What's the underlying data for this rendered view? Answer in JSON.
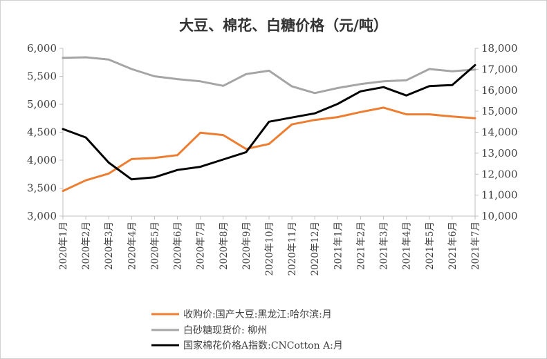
{
  "chart_data": {
    "type": "line",
    "title": "大豆、棉花、白糖价格（元/吨）",
    "categories": [
      "2020年1月",
      "2020年2月",
      "2020年3月",
      "2020年4月",
      "2020年5月",
      "2020年6月",
      "2020年7月",
      "2020年8月",
      "2020年9月",
      "2020年10月",
      "2020年11月",
      "2020年12月",
      "2021年1月",
      "2021年2月",
      "2021年3月",
      "2021年4月",
      "2021年5月",
      "2021年6月",
      "2021年7月"
    ],
    "y_left": {
      "min": 3000,
      "max": 6000,
      "ticks": [
        "3,000",
        "3,500",
        "4,000",
        "4,500",
        "5,000",
        "5,500",
        "6,000"
      ]
    },
    "y_right": {
      "min": 10000,
      "max": 18000,
      "ticks": [
        "10,000",
        "11,000",
        "12,000",
        "13,000",
        "14,000",
        "15,000",
        "16,000",
        "17,000",
        "18,000"
      ]
    },
    "series": [
      {
        "name": "收购价:国产大豆:黑龙江:哈尔滨:月",
        "axis": "left",
        "color": "#ED7D31",
        "values": [
          3450,
          3640,
          3760,
          4020,
          4040,
          4090,
          4490,
          4450,
          4200,
          4290,
          4640,
          4720,
          4770,
          4860,
          4940,
          4820,
          4820,
          4780,
          4750
        ]
      },
      {
        "name": "白砂糖现货价: 柳州",
        "axis": "left",
        "color": "#A5A5A5",
        "values": [
          5830,
          5840,
          5800,
          5630,
          5500,
          5450,
          5410,
          5330,
          5540,
          5600,
          5320,
          5200,
          5290,
          5360,
          5410,
          5430,
          5630,
          5590,
          5620
        ]
      },
      {
        "name": "国家棉花价格A指数:CNCotton A:月",
        "axis": "right",
        "color": "#000000",
        "values": [
          14150,
          13750,
          12550,
          11750,
          11850,
          12200,
          12350,
          12700,
          13050,
          14500,
          14700,
          14900,
          15350,
          15950,
          16150,
          15750,
          16200,
          16250,
          17200
        ]
      }
    ],
    "legend_position": "bottom",
    "grid": false
  }
}
